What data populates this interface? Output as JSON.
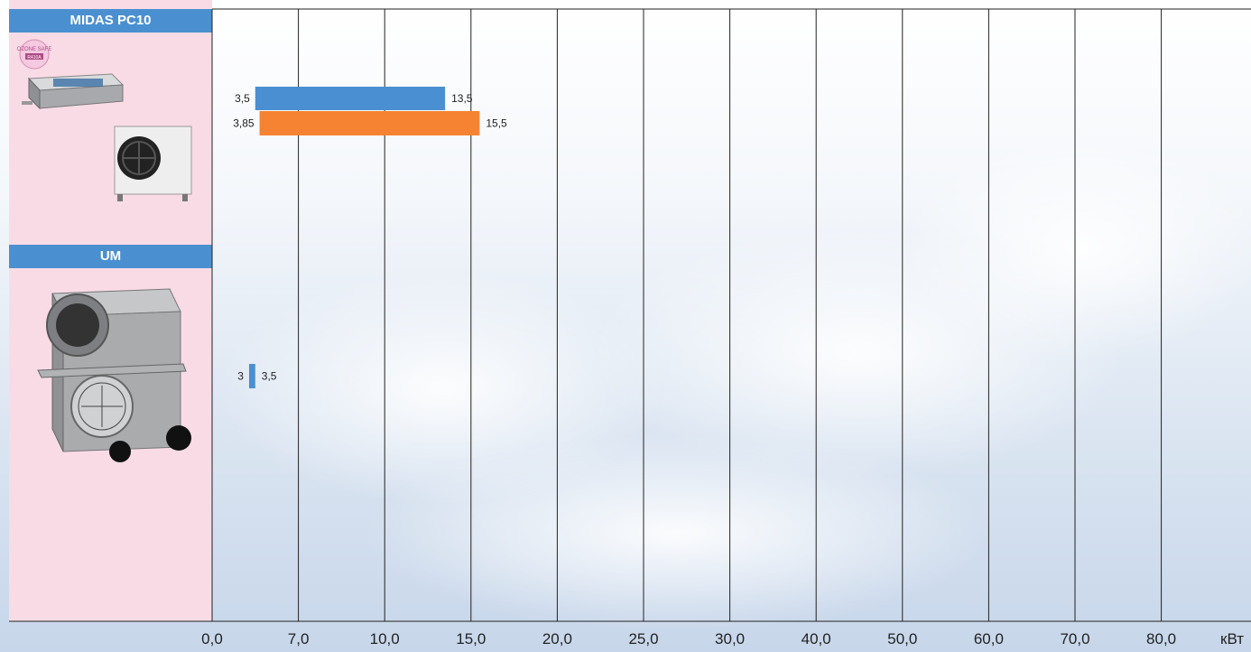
{
  "groups": [
    {
      "name": "MIDAS PC10"
    },
    {
      "name": "UM"
    }
  ],
  "unit": "кВт",
  "colors": {
    "cooling": "#4a8fd1",
    "heating": "#f58331",
    "header_bg": "#4a90d0",
    "panel_bg": "#f9dbe6"
  },
  "badge_text": "OZONE SAFE",
  "badge_sub": "R410A",
  "chart_data": {
    "type": "bar",
    "orientation": "horizontal",
    "x_ticks": [
      "0,0",
      "7,0",
      "10,0",
      "15,0",
      "20,0",
      "25,0",
      "30,0",
      "40,0",
      "50,0",
      "60,0",
      "70,0",
      "80,0"
    ],
    "x_tick_values": [
      0,
      7,
      10,
      15,
      20,
      25,
      30,
      40,
      50,
      60,
      70,
      80
    ],
    "xlabel": "кВт",
    "bars": [
      {
        "group": "MIDAS PC10",
        "series": "cooling",
        "start": 3.5,
        "end": 13.5,
        "start_label": "3,5",
        "end_label": "13,5"
      },
      {
        "group": "MIDAS PC10",
        "series": "heating",
        "start": 3.85,
        "end": 15.5,
        "start_label": "3,85",
        "end_label": "15,5"
      },
      {
        "group": "UM",
        "series": "cooling",
        "start": 3,
        "end": 3.5,
        "start_label": "3",
        "end_label": "3,5"
      }
    ]
  }
}
